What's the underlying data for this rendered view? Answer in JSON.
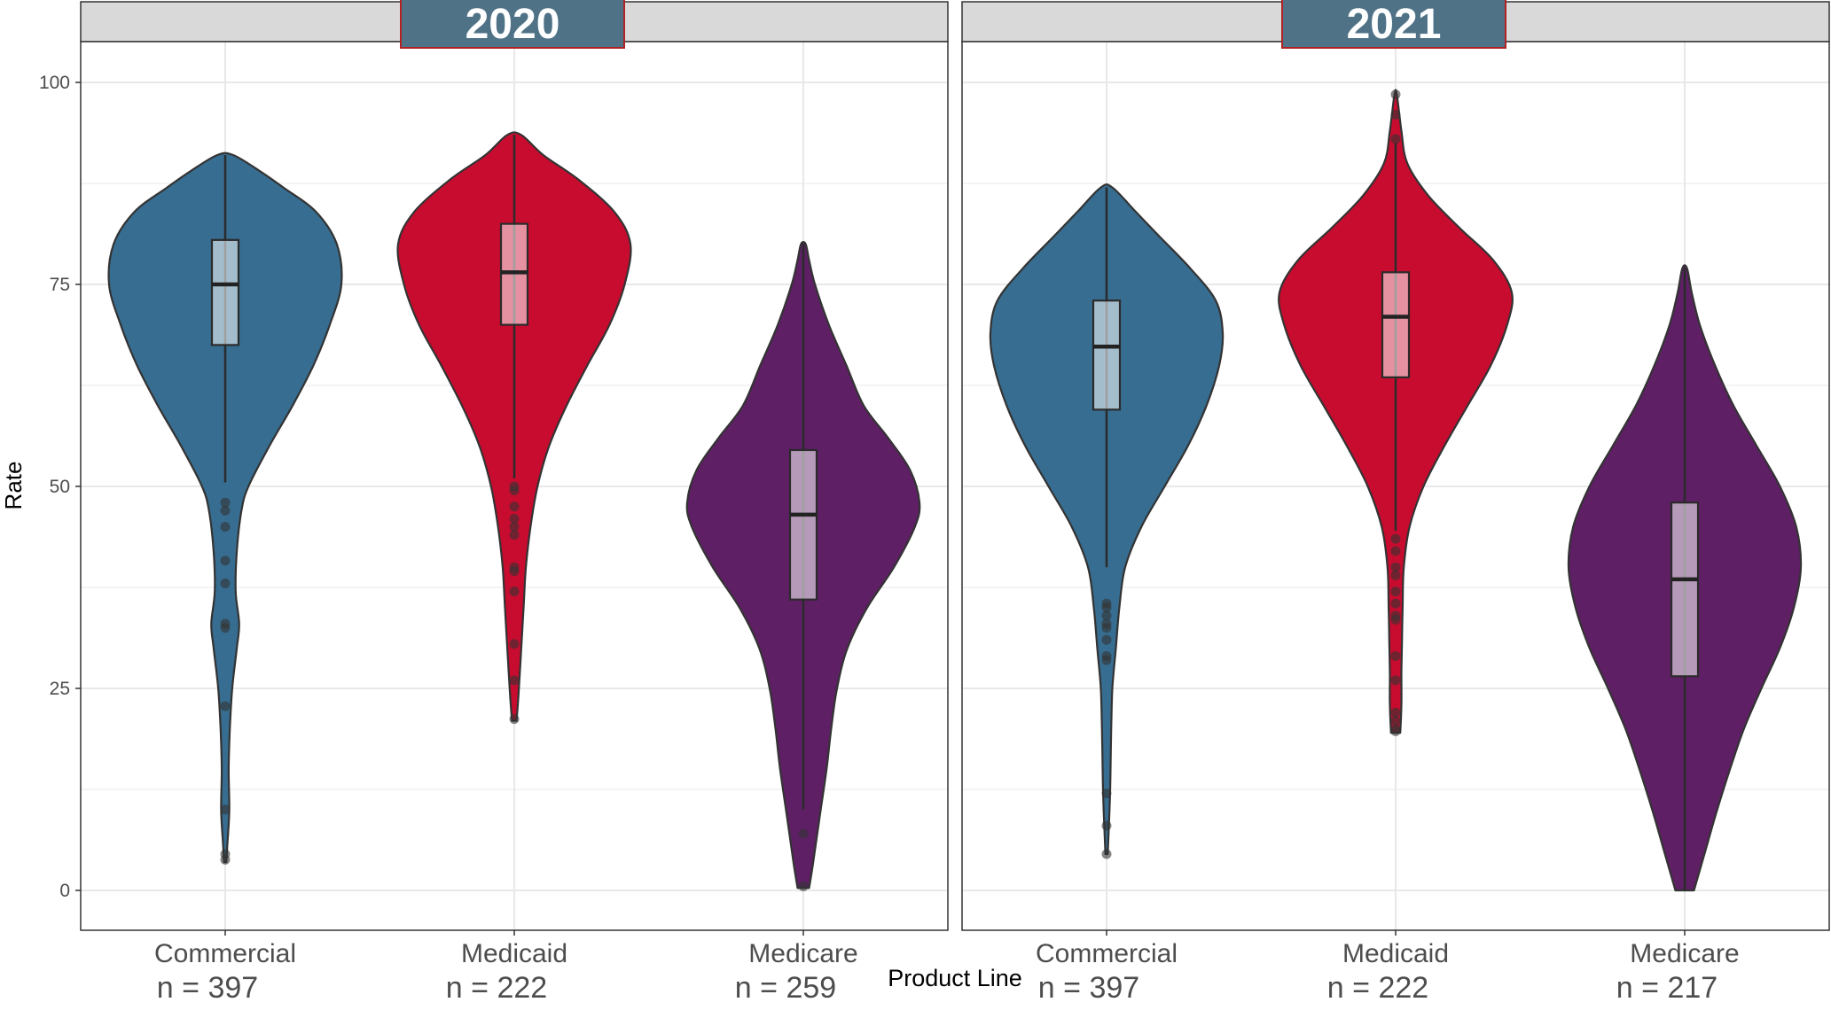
{
  "chart_data": {
    "type": "violin",
    "xlabel": "Product Line",
    "ylabel": "Rate",
    "ylim": [
      -5,
      105
    ],
    "yticks": [
      0,
      25,
      50,
      75,
      100
    ],
    "grid": true,
    "categories": [
      "Commercial",
      "Medicaid",
      "Medicare"
    ],
    "colors": {
      "Commercial": "#376d90",
      "Medicaid": "#c70c2f",
      "Medicare": "#5e1f65",
      "outline": "#333333",
      "strip_fill": "#d9d9d9",
      "title_box": "#4f7287",
      "title_border": "#b22222"
    },
    "panels": [
      {
        "title": "2020",
        "groups": [
          {
            "category": "Commercial",
            "n_label": "n = 397",
            "min": 3.5,
            "max": 91,
            "q1": 67.5,
            "median": 75,
            "q3": 80.5,
            "whisker_low": 50.5,
            "whisker_high": 91,
            "outliers": [
              48,
              47,
              45,
              40.8,
              38,
              33,
              32.5,
              22.8,
              10,
              4.5,
              3.8
            ],
            "density": [
              [
                3.5,
                0.01
              ],
              [
                6,
                0.02
              ],
              [
                10,
                0.035
              ],
              [
                15,
                0.03
              ],
              [
                20,
                0.04
              ],
              [
                25,
                0.06
              ],
              [
                30,
                0.1
              ],
              [
                33,
                0.12
              ],
              [
                37,
                0.09
              ],
              [
                42,
                0.1
              ],
              [
                47,
                0.14
              ],
              [
                50,
                0.2
              ],
              [
                55,
                0.38
              ],
              [
                60,
                0.58
              ],
              [
                65,
                0.76
              ],
              [
                70,
                0.9
              ],
              [
                75,
                1.0
              ],
              [
                80,
                0.96
              ],
              [
                84,
                0.78
              ],
              [
                87,
                0.5
              ],
              [
                89,
                0.3
              ],
              [
                91,
                0.07
              ]
            ]
          },
          {
            "category": "Medicaid",
            "n_label": "n = 222",
            "min": 21,
            "max": 93.5,
            "q1": 70,
            "median": 76.5,
            "q3": 82.5,
            "whisker_low": 51,
            "whisker_high": 93.5,
            "outliers": [
              50,
              49.5,
              47.5,
              46,
              45,
              44,
              40,
              39.5,
              37,
              30.5,
              26,
              21.2
            ],
            "density": [
              [
                21,
                0.02
              ],
              [
                25,
                0.04
              ],
              [
                30,
                0.06
              ],
              [
                35,
                0.08
              ],
              [
                40,
                0.1
              ],
              [
                45,
                0.14
              ],
              [
                50,
                0.2
              ],
              [
                55,
                0.3
              ],
              [
                60,
                0.45
              ],
              [
                65,
                0.63
              ],
              [
                70,
                0.82
              ],
              [
                75,
                0.95
              ],
              [
                80,
                1.0
              ],
              [
                84,
                0.86
              ],
              [
                88,
                0.55
              ],
              [
                91,
                0.25
              ],
              [
                93.5,
                0.06
              ]
            ]
          },
          {
            "category": "Medicare",
            "n_label": "n = 259",
            "min": 0.3,
            "max": 80,
            "q1": 36,
            "median": 46.5,
            "q3": 54.5,
            "whisker_low": 10,
            "whisker_high": 80,
            "outliers": [
              7,
              0.5
            ],
            "density": [
              [
                0.3,
                0.05
              ],
              [
                3,
                0.08
              ],
              [
                6,
                0.11
              ],
              [
                10,
                0.15
              ],
              [
                15,
                0.2
              ],
              [
                20,
                0.24
              ],
              [
                25,
                0.29
              ],
              [
                30,
                0.38
              ],
              [
                35,
                0.55
              ],
              [
                40,
                0.78
              ],
              [
                45,
                0.96
              ],
              [
                48,
                1.0
              ],
              [
                52,
                0.92
              ],
              [
                56,
                0.73
              ],
              [
                60,
                0.52
              ],
              [
                65,
                0.37
              ],
              [
                70,
                0.22
              ],
              [
                75,
                0.1
              ],
              [
                78,
                0.05
              ],
              [
                80,
                0.02
              ]
            ]
          }
        ]
      },
      {
        "title": "2021",
        "groups": [
          {
            "category": "Commercial",
            "n_label": "n = 397",
            "min": 4.5,
            "max": 87,
            "q1": 59.5,
            "median": 67.3,
            "q3": 73,
            "whisker_low": 40,
            "whisker_high": 87,
            "outliers": [
              35.5,
              35,
              34,
              33,
              32.5,
              31,
              29,
              28.5,
              12,
              8,
              4.5
            ],
            "density": [
              [
                4.5,
                0.01
              ],
              [
                8,
                0.02
              ],
              [
                12,
                0.03
              ],
              [
                16,
                0.035
              ],
              [
                20,
                0.04
              ],
              [
                25,
                0.05
              ],
              [
                30,
                0.08
              ],
              [
                35,
                0.11
              ],
              [
                40,
                0.16
              ],
              [
                45,
                0.3
              ],
              [
                50,
                0.5
              ],
              [
                55,
                0.7
              ],
              [
                60,
                0.86
              ],
              [
                65,
                0.97
              ],
              [
                69,
                1.0
              ],
              [
                73,
                0.94
              ],
              [
                77,
                0.72
              ],
              [
                81,
                0.45
              ],
              [
                84,
                0.25
              ],
              [
                87,
                0.05
              ]
            ]
          },
          {
            "category": "Medicaid",
            "n_label": "n = 222",
            "min": 19.5,
            "max": 98.5,
            "q1": 63.5,
            "median": 71,
            "q3": 76.5,
            "whisker_low": 44.5,
            "whisker_high": 92.5,
            "outliers": [
              43.5,
              42,
              40,
              39,
              37,
              35.5,
              34,
              33.5,
              29,
              26,
              22,
              21,
              20,
              19.7,
              93,
              96,
              98.5
            ],
            "density": [
              [
                19.5,
                0.04
              ],
              [
                23,
                0.05
              ],
              [
                27,
                0.05
              ],
              [
                31,
                0.055
              ],
              [
                35,
                0.06
              ],
              [
                40,
                0.07
              ],
              [
                45,
                0.12
              ],
              [
                50,
                0.24
              ],
              [
                55,
                0.42
              ],
              [
                60,
                0.62
              ],
              [
                65,
                0.82
              ],
              [
                70,
                0.96
              ],
              [
                74,
                1.0
              ],
              [
                78,
                0.84
              ],
              [
                82,
                0.55
              ],
              [
                86,
                0.28
              ],
              [
                90,
                0.1
              ],
              [
                94,
                0.05
              ],
              [
                98.5,
                0.01
              ]
            ]
          },
          {
            "category": "Medicare",
            "n_label": "n = 217",
            "min": 0,
            "max": 77,
            "q1": 26.5,
            "median": 38.5,
            "q3": 48,
            "whisker_low": 0,
            "whisker_high": 77,
            "outliers": [],
            "density": [
              [
                0,
                0.08
              ],
              [
                5,
                0.18
              ],
              [
                10,
                0.28
              ],
              [
                15,
                0.39
              ],
              [
                20,
                0.51
              ],
              [
                25,
                0.66
              ],
              [
                30,
                0.82
              ],
              [
                35,
                0.94
              ],
              [
                40,
                1.0
              ],
              [
                45,
                0.96
              ],
              [
                50,
                0.82
              ],
              [
                55,
                0.62
              ],
              [
                60,
                0.42
              ],
              [
                65,
                0.26
              ],
              [
                70,
                0.13
              ],
              [
                74,
                0.06
              ],
              [
                77,
                0.02
              ]
            ]
          }
        ]
      }
    ]
  }
}
